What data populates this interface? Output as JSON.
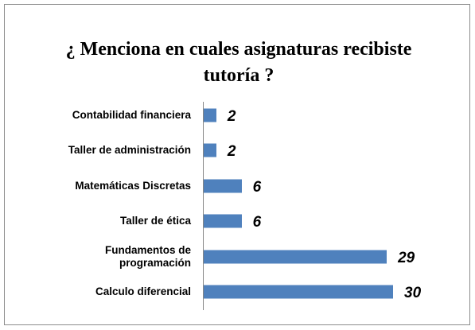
{
  "chart_data": {
    "type": "bar",
    "orientation": "horizontal",
    "title": "¿ Menciona en cuales asignaturas recibiste tutoría ?",
    "categories": [
      "Contabilidad financiera",
      "Taller de administración",
      "Matemáticas Discretas",
      "Taller de ética",
      "Fundamentos de programación",
      "Calculo diferencial"
    ],
    "values": [
      2,
      2,
      6,
      6,
      29,
      30
    ],
    "color": "#4f81bd",
    "xlim": [
      0,
      30
    ]
  }
}
